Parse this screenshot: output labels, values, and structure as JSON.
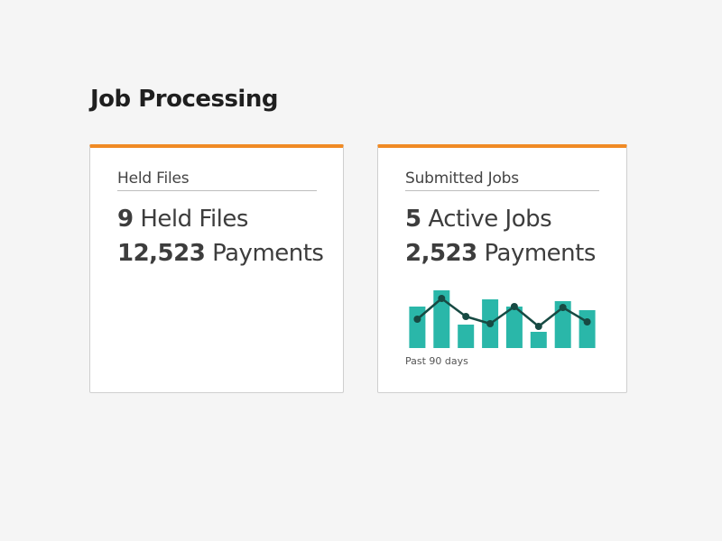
{
  "page_title": "Job Processing",
  "colors": {
    "accent": "#f08a24",
    "bar": "#2ab7a9",
    "line": "#174a43"
  },
  "cards": [
    {
      "heading": "Held Files",
      "stats": [
        {
          "value": "9",
          "label": "Held Files"
        },
        {
          "value": "12,523",
          "label": "Payments"
        }
      ]
    },
    {
      "heading": "Submitted Jobs",
      "stats": [
        {
          "value": "5",
          "label": "Active Jobs"
        },
        {
          "value": "2,523",
          "label": "Payments"
        }
      ],
      "caption": "Past 90 days"
    }
  ],
  "chart_data": {
    "type": "bar",
    "caption": "Past 90 days",
    "bars": [
      46,
      64,
      26,
      54,
      46,
      18,
      52,
      42
    ],
    "line": [
      32,
      55,
      35,
      27,
      46,
      24,
      45,
      29
    ],
    "ylim": [
      0,
      64
    ]
  }
}
